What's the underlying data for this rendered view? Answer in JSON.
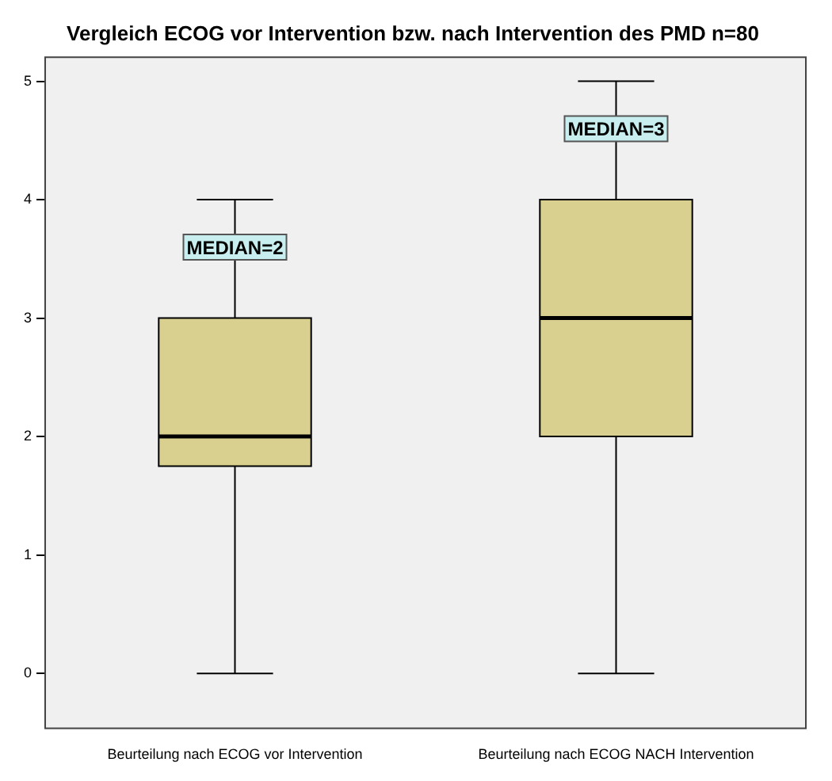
{
  "chart_data": {
    "type": "box",
    "title": "Vergleich ECOG vor Intervention bzw. nach Intervention des PMD n=80",
    "categories": [
      "Beurteilung nach ECOG vor Intervention",
      "Beurteilung nach ECOG NACH Intervention"
    ],
    "boxes": [
      {
        "low": 0,
        "q1": 1.75,
        "median": 2,
        "q3": 3,
        "high": 4
      },
      {
        "low": 0,
        "q1": 2,
        "median": 3,
        "q3": 4,
        "high": 5
      }
    ],
    "color": "#d9cf8e",
    "ylim": [
      -0.47,
      5.21
    ],
    "yticks": [
      0,
      1,
      2,
      3,
      4,
      5
    ],
    "grid": false,
    "legend": false,
    "annotations": [
      {
        "text": "MEDIAN=2",
        "x": "Beurteilung nach ECOG vor Intervention",
        "y": 3.6
      },
      {
        "text": "MEDIAN=3",
        "x": "Beurteilung nach ECOG NACH Intervention",
        "y": 4.6
      }
    ]
  }
}
